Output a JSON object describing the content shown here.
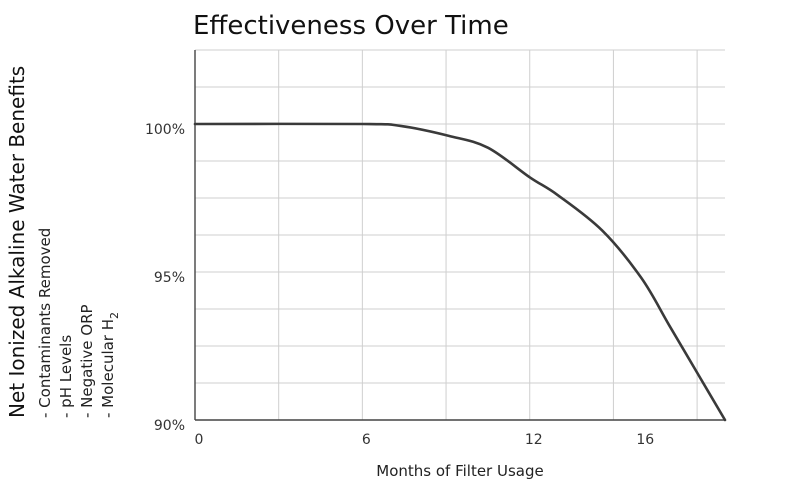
{
  "chart_data": {
    "type": "line",
    "title": "Effectiveness Over Time",
    "xlabel": "Months of Filter Usage",
    "ylabel": "Net Ionized Alkaline Water Benefits",
    "ylabel_items": [
      {
        "text": "- Contaminants Removed"
      },
      {
        "text": "- pH Levels"
      },
      {
        "text": "- Negative ORP"
      },
      {
        "text": "- Molecular H",
        "sub": "2"
      }
    ],
    "xlim": [
      0,
      19
    ],
    "ylim": [
      90,
      102.5
    ],
    "x_ticks": [
      {
        "value": 0,
        "label": "0"
      },
      {
        "value": 6,
        "label": "6"
      },
      {
        "value": 12,
        "label": "12"
      },
      {
        "value": 16,
        "label": "16"
      }
    ],
    "y_ticks": [
      {
        "value": 90,
        "label": "90%"
      },
      {
        "value": 95,
        "label": "95%"
      },
      {
        "value": 100,
        "label": "100%"
      }
    ],
    "grid": true,
    "series": [
      {
        "x": [
          0,
          6,
          7.4,
          9.1,
          10.5,
          12,
          13,
          14.6,
          16,
          17,
          18,
          19
        ],
        "y": [
          100,
          100,
          99.93,
          99.6,
          99.2,
          98.2,
          97.6,
          96.4,
          94.8,
          93.2,
          91.6,
          90
        ]
      }
    ]
  }
}
